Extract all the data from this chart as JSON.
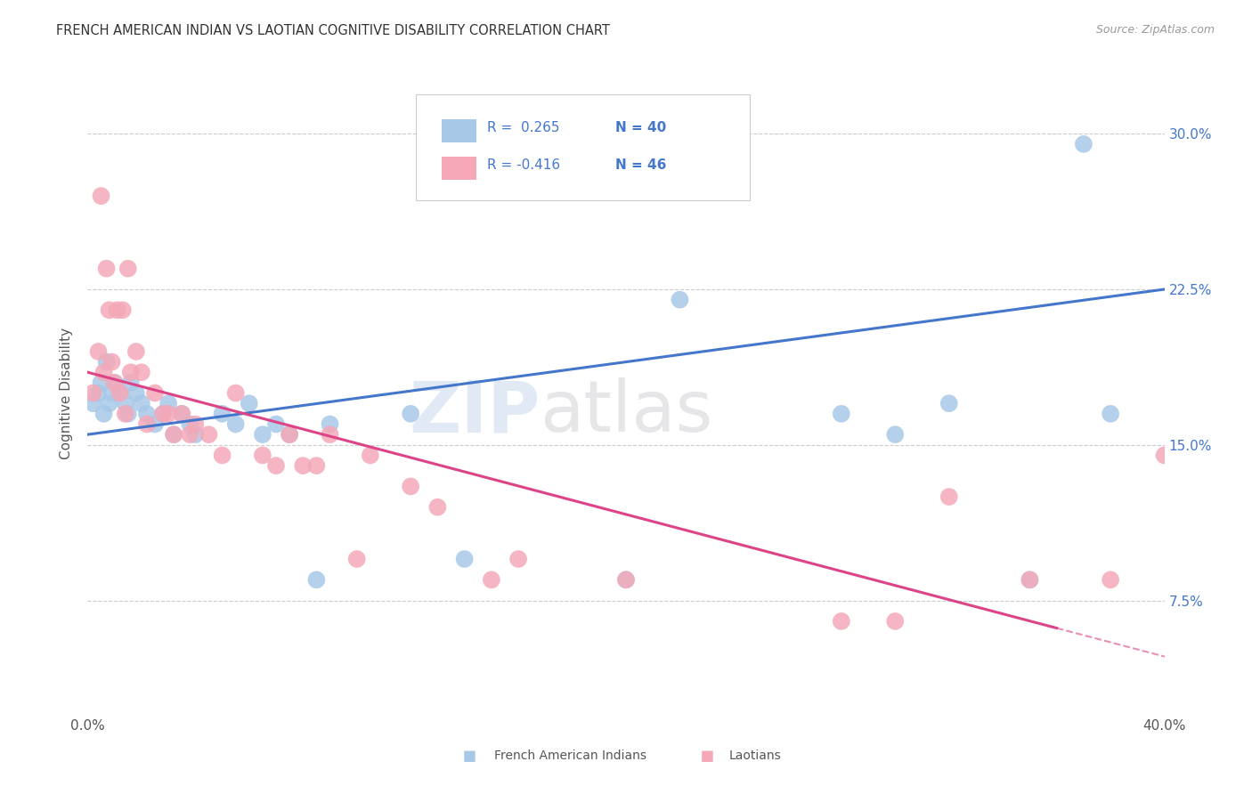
{
  "title": "FRENCH AMERICAN INDIAN VS LAOTIAN COGNITIVE DISABILITY CORRELATION CHART",
  "source": "Source: ZipAtlas.com",
  "ylabel": "Cognitive Disability",
  "ytick_labels": [
    "7.5%",
    "15.0%",
    "22.5%",
    "30.0%"
  ],
  "ytick_values": [
    0.075,
    0.15,
    0.225,
    0.3
  ],
  "xlim": [
    0.0,
    0.4
  ],
  "ylim": [
    0.02,
    0.33
  ],
  "blue_color": "#A8C8E8",
  "pink_color": "#F4A8B8",
  "line_blue": "#4477CC",
  "line_pink": "#DD4488",
  "blue_line_start_y": 0.155,
  "blue_line_end_y": 0.225,
  "pink_line_start_y": 0.185,
  "pink_line_end_y": 0.048,
  "blue_x": [
    0.002,
    0.004,
    0.005,
    0.006,
    0.007,
    0.008,
    0.009,
    0.01,
    0.012,
    0.014,
    0.015,
    0.016,
    0.018,
    0.02,
    0.022,
    0.025,
    0.028,
    0.03,
    0.032,
    0.035,
    0.038,
    0.04,
    0.05,
    0.055,
    0.06,
    0.065,
    0.07,
    0.075,
    0.085,
    0.09,
    0.12,
    0.14,
    0.2,
    0.22,
    0.28,
    0.3,
    0.32,
    0.35,
    0.38,
    0.37
  ],
  "blue_y": [
    0.17,
    0.175,
    0.18,
    0.165,
    0.19,
    0.17,
    0.175,
    0.18,
    0.175,
    0.17,
    0.165,
    0.18,
    0.175,
    0.17,
    0.165,
    0.16,
    0.165,
    0.17,
    0.155,
    0.165,
    0.16,
    0.155,
    0.165,
    0.16,
    0.17,
    0.155,
    0.16,
    0.155,
    0.085,
    0.16,
    0.165,
    0.095,
    0.085,
    0.22,
    0.165,
    0.155,
    0.17,
    0.085,
    0.165,
    0.295
  ],
  "pink_x": [
    0.002,
    0.004,
    0.005,
    0.006,
    0.007,
    0.008,
    0.009,
    0.01,
    0.011,
    0.012,
    0.013,
    0.014,
    0.015,
    0.016,
    0.018,
    0.02,
    0.022,
    0.025,
    0.028,
    0.03,
    0.032,
    0.035,
    0.038,
    0.04,
    0.045,
    0.05,
    0.055,
    0.065,
    0.07,
    0.075,
    0.08,
    0.085,
    0.09,
    0.1,
    0.105,
    0.12,
    0.13,
    0.15,
    0.16,
    0.2,
    0.28,
    0.3,
    0.32,
    0.35,
    0.38,
    0.4
  ],
  "pink_y": [
    0.175,
    0.195,
    0.27,
    0.185,
    0.235,
    0.215,
    0.19,
    0.18,
    0.215,
    0.175,
    0.215,
    0.165,
    0.235,
    0.185,
    0.195,
    0.185,
    0.16,
    0.175,
    0.165,
    0.165,
    0.155,
    0.165,
    0.155,
    0.16,
    0.155,
    0.145,
    0.175,
    0.145,
    0.14,
    0.155,
    0.14,
    0.14,
    0.155,
    0.095,
    0.145,
    0.13,
    0.12,
    0.085,
    0.095,
    0.085,
    0.065,
    0.065,
    0.125,
    0.085,
    0.085,
    0.145
  ]
}
